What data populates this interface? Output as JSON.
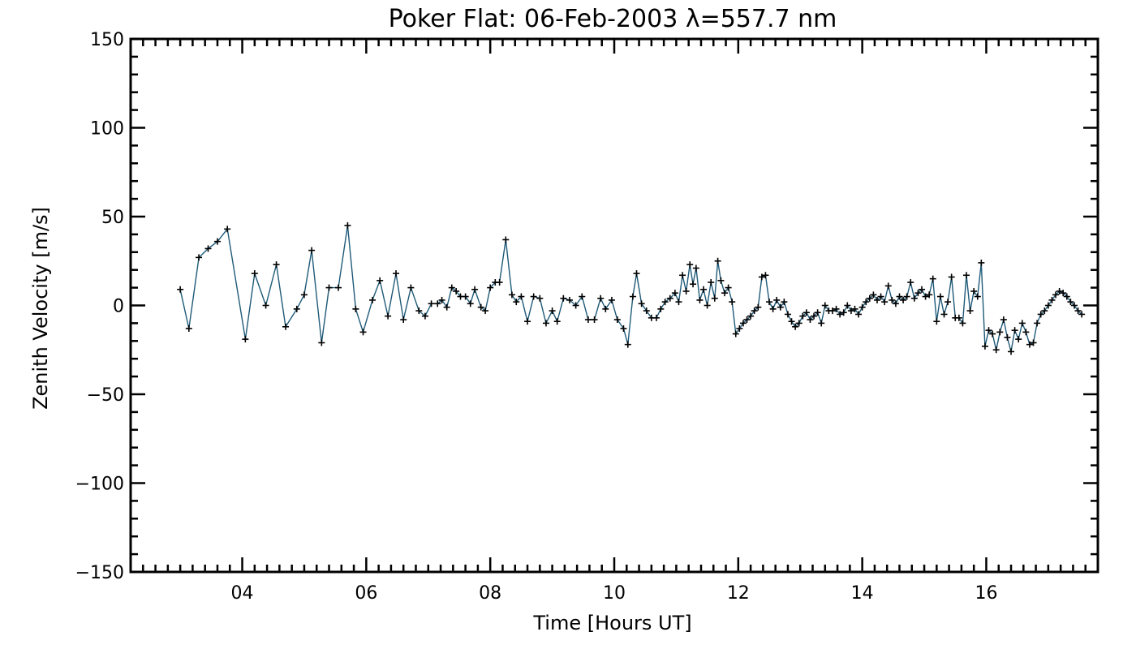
{
  "chart_data": {
    "type": "line",
    "title": "Poker Flat: 06-Feb-2003 λ=557.7 nm",
    "xlabel": "Time [Hours UT]",
    "ylabel": "Zenith Velocity [m/s]",
    "xlim": [
      2.2,
      17.8
    ],
    "ylim": [
      -150,
      150
    ],
    "x_major_ticks": [
      4,
      6,
      8,
      10,
      12,
      14,
      16
    ],
    "x_tick_labels": [
      "04",
      "06",
      "08",
      "10",
      "12",
      "14",
      "16"
    ],
    "x_minor_step": 0.2,
    "y_major_ticks": [
      -150,
      -100,
      -50,
      0,
      50,
      100,
      150
    ],
    "y_tick_labels": [
      "−150",
      "−100",
      "−50",
      "0",
      "50",
      "100",
      "150"
    ],
    "y_minor_step": 10,
    "grid": false,
    "series": [
      {
        "color": "#1f5a78",
        "marker": "+",
        "points": [
          [
            3.0,
            9
          ],
          [
            3.14,
            -13
          ],
          [
            3.3,
            27
          ],
          [
            3.45,
            32
          ],
          [
            3.6,
            36
          ],
          [
            3.76,
            43
          ],
          [
            4.05,
            -19
          ],
          [
            4.2,
            18
          ],
          [
            4.38,
            0
          ],
          [
            4.55,
            23
          ],
          [
            4.7,
            -12
          ],
          [
            4.88,
            -2
          ],
          [
            5.0,
            6
          ],
          [
            5.12,
            31
          ],
          [
            5.28,
            -21
          ],
          [
            5.4,
            10
          ],
          [
            5.55,
            10
          ],
          [
            5.7,
            45
          ],
          [
            5.83,
            -2
          ],
          [
            5.95,
            -15
          ],
          [
            6.1,
            3
          ],
          [
            6.22,
            14
          ],
          [
            6.35,
            -6
          ],
          [
            6.48,
            18
          ],
          [
            6.6,
            -8
          ],
          [
            6.72,
            10
          ],
          [
            6.85,
            -3
          ],
          [
            6.95,
            -6
          ],
          [
            7.05,
            1
          ],
          [
            7.15,
            1
          ],
          [
            7.22,
            3
          ],
          [
            7.3,
            -1
          ],
          [
            7.38,
            10
          ],
          [
            7.45,
            8
          ],
          [
            7.52,
            5
          ],
          [
            7.6,
            5
          ],
          [
            7.68,
            1
          ],
          [
            7.75,
            9
          ],
          [
            7.85,
            -1
          ],
          [
            7.92,
            -3
          ],
          [
            8.0,
            10
          ],
          [
            8.08,
            13
          ],
          [
            8.15,
            13
          ],
          [
            8.25,
            37
          ],
          [
            8.35,
            6
          ],
          [
            8.42,
            2
          ],
          [
            8.5,
            5
          ],
          [
            8.6,
            -9
          ],
          [
            8.7,
            5
          ],
          [
            8.8,
            4
          ],
          [
            8.9,
            -10
          ],
          [
            9.0,
            -3
          ],
          [
            9.08,
            -9
          ],
          [
            9.18,
            4
          ],
          [
            9.28,
            3
          ],
          [
            9.38,
            0
          ],
          [
            9.48,
            5
          ],
          [
            9.58,
            -8
          ],
          [
            9.68,
            -8
          ],
          [
            9.78,
            4
          ],
          [
            9.86,
            -2
          ],
          [
            9.96,
            3
          ],
          [
            10.05,
            -8
          ],
          [
            10.15,
            -13
          ],
          [
            10.22,
            -22
          ],
          [
            10.3,
            5
          ],
          [
            10.36,
            18
          ],
          [
            10.44,
            1
          ],
          [
            10.52,
            -3
          ],
          [
            10.6,
            -7
          ],
          [
            10.68,
            -7
          ],
          [
            10.75,
            -2
          ],
          [
            10.82,
            2
          ],
          [
            10.9,
            4
          ],
          [
            10.98,
            7
          ],
          [
            11.04,
            2
          ],
          [
            11.1,
            17
          ],
          [
            11.16,
            8
          ],
          [
            11.22,
            23
          ],
          [
            11.27,
            12
          ],
          [
            11.32,
            21
          ],
          [
            11.38,
            3
          ],
          [
            11.44,
            9
          ],
          [
            11.5,
            0
          ],
          [
            11.56,
            13
          ],
          [
            11.62,
            4
          ],
          [
            11.67,
            25
          ],
          [
            11.72,
            14
          ],
          [
            11.78,
            7
          ],
          [
            11.84,
            10
          ],
          [
            11.9,
            2
          ],
          [
            11.96,
            -16
          ],
          [
            12.02,
            -13
          ],
          [
            12.08,
            -10
          ],
          [
            12.14,
            -8
          ],
          [
            12.2,
            -6
          ],
          [
            12.26,
            -3
          ],
          [
            12.32,
            -1
          ],
          [
            12.38,
            16
          ],
          [
            12.44,
            17
          ],
          [
            12.5,
            2
          ],
          [
            12.56,
            -2
          ],
          [
            12.62,
            3
          ],
          [
            12.68,
            -1
          ],
          [
            12.74,
            2
          ],
          [
            12.8,
            -5
          ],
          [
            12.86,
            -9
          ],
          [
            12.92,
            -12
          ],
          [
            12.98,
            -10
          ],
          [
            13.04,
            -6
          ],
          [
            13.1,
            -4
          ],
          [
            13.16,
            -8
          ],
          [
            13.22,
            -6
          ],
          [
            13.28,
            -4
          ],
          [
            13.34,
            -10
          ],
          [
            13.4,
            0
          ],
          [
            13.46,
            -3
          ],
          [
            13.52,
            -3
          ],
          [
            13.58,
            -2
          ],
          [
            13.64,
            -5
          ],
          [
            13.7,
            -4
          ],
          [
            13.76,
            0
          ],
          [
            13.82,
            -3
          ],
          [
            13.88,
            -2
          ],
          [
            13.94,
            -5
          ],
          [
            14.0,
            -1
          ],
          [
            14.06,
            2
          ],
          [
            14.12,
            4
          ],
          [
            14.18,
            6
          ],
          [
            14.24,
            3
          ],
          [
            14.3,
            5
          ],
          [
            14.36,
            2
          ],
          [
            14.42,
            11
          ],
          [
            14.48,
            3
          ],
          [
            14.54,
            1
          ],
          [
            14.6,
            5
          ],
          [
            14.66,
            3
          ],
          [
            14.72,
            5
          ],
          [
            14.78,
            13
          ],
          [
            14.84,
            4
          ],
          [
            14.9,
            7
          ],
          [
            14.96,
            9
          ],
          [
            15.02,
            5
          ],
          [
            15.08,
            6
          ],
          [
            15.14,
            15
          ],
          [
            15.2,
            -9
          ],
          [
            15.26,
            5
          ],
          [
            15.32,
            -5
          ],
          [
            15.38,
            2
          ],
          [
            15.44,
            16
          ],
          [
            15.5,
            -7
          ],
          [
            15.56,
            -7
          ],
          [
            15.62,
            -10
          ],
          [
            15.68,
            17
          ],
          [
            15.74,
            -3
          ],
          [
            15.8,
            8
          ],
          [
            15.86,
            5
          ],
          [
            15.92,
            24
          ],
          [
            15.98,
            -23
          ],
          [
            16.04,
            -14
          ],
          [
            16.1,
            -16
          ],
          [
            16.16,
            -25
          ],
          [
            16.22,
            -15
          ],
          [
            16.28,
            -8
          ],
          [
            16.34,
            -18
          ],
          [
            16.4,
            -26
          ],
          [
            16.46,
            -14
          ],
          [
            16.52,
            -19
          ],
          [
            16.58,
            -10
          ],
          [
            16.64,
            -15
          ],
          [
            16.7,
            -22
          ],
          [
            16.76,
            -21
          ],
          [
            16.82,
            -10
          ],
          [
            16.88,
            -5
          ],
          [
            16.94,
            -3
          ],
          [
            17.0,
            0
          ],
          [
            17.06,
            3
          ],
          [
            17.12,
            6
          ],
          [
            17.18,
            8
          ],
          [
            17.24,
            7
          ],
          [
            17.3,
            5
          ],
          [
            17.36,
            2
          ],
          [
            17.42,
            0
          ],
          [
            17.48,
            -3
          ],
          [
            17.54,
            -5
          ]
        ]
      }
    ]
  }
}
